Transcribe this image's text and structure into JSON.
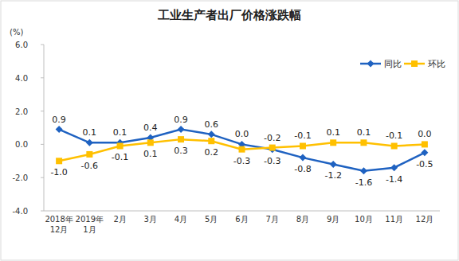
{
  "chart_data": {
    "type": "line",
    "title": "工业生产者出厂价格涨跌幅",
    "y_label": "(%)",
    "categories": [
      "2018年12月",
      "2019年1月",
      "2月",
      "3月",
      "4月",
      "5月",
      "6月",
      "7月",
      "8月",
      "9月",
      "10月",
      "11月",
      "12月"
    ],
    "series": [
      {
        "name": "同比",
        "color": "#1f62c1",
        "marker": "diamond",
        "line_style": "solid",
        "values": [
          0.9,
          0.1,
          0.1,
          0.4,
          0.9,
          0.6,
          0.0,
          -0.3,
          -0.8,
          -1.2,
          -1.6,
          -1.4,
          -0.5
        ],
        "value_labels": [
          "0.9",
          "0.1",
          "0.1",
          "0.4",
          "0.9",
          "0.6",
          "0.0",
          "-0.3",
          "-0.8",
          "-1.2",
          "-1.6",
          "-1.4",
          "-0.5"
        ]
      },
      {
        "name": "环比",
        "color": "#ffc000",
        "marker": "square",
        "line_style": "solid",
        "values": [
          -1.0,
          -0.6,
          -0.1,
          0.1,
          0.3,
          0.2,
          -0.3,
          -0.2,
          -0.1,
          0.1,
          0.1,
          -0.1,
          0.0
        ],
        "value_labels": [
          "-1.0",
          "-0.6",
          "-0.1",
          "0.1",
          "0.3",
          "0.2",
          "-0.3",
          "-0.2",
          "-0.1",
          "0.1",
          "0.1",
          "-0.1",
          "0.0"
        ]
      }
    ],
    "ylim": [
      -4,
      6
    ],
    "yticks": [
      {
        "value": -4,
        "label": "-4.0"
      },
      {
        "value": -2,
        "label": "-2.0"
      },
      {
        "value": 0,
        "label": "0.0"
      },
      {
        "value": 2,
        "label": "2.0"
      },
      {
        "value": 4,
        "label": "4.0"
      },
      {
        "value": 6,
        "label": "6.0"
      }
    ],
    "grid": false,
    "legend": "upper right",
    "data_labels": true
  }
}
